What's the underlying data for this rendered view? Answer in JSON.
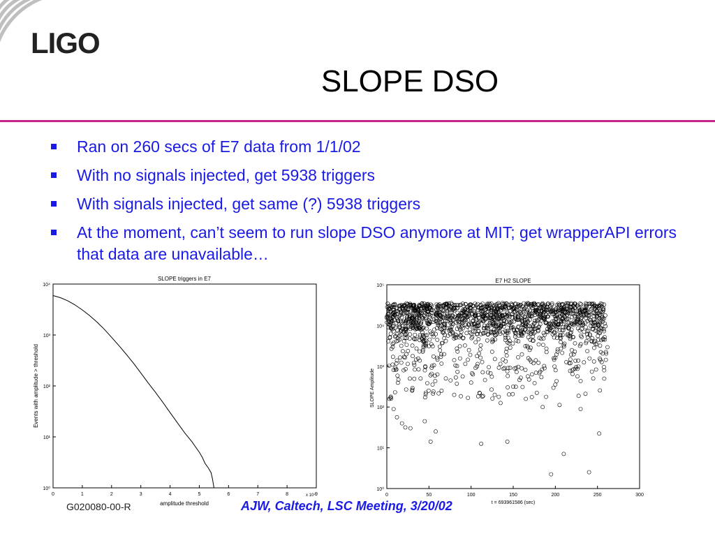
{
  "header": {
    "logo_text": "LIGO",
    "title": "SLOPE DSO"
  },
  "bullets": [
    "Ran on 260 secs of E7 data from 1/1/02",
    "With no signals injected, get 5938 triggers",
    "With signals injected, get same (?) 5938 triggers",
    "At the moment, can’t seem to run slope DSO anymore at MIT; get wrapperAPI errors that data are unavailable…"
  ],
  "footer": {
    "doc_id": "G020080-00-R",
    "meeting": "AJW, Caltech, LSC Meeting, 3/20/02"
  },
  "colors": {
    "accent_rule": "#c8238c",
    "bullet_text": "#1a1ae6"
  },
  "chart_data": [
    {
      "type": "line",
      "title": "SLOPE triggers in E7",
      "xlabel": "amplitude threshold",
      "ylabel": "Events with amplitude > threshold",
      "x_exponent_label": "x 10⁴",
      "xlim": [
        0,
        9
      ],
      "ylim_log10": [
        0,
        4
      ],
      "y_scale": "log",
      "xticks": [
        "0",
        "1",
        "2",
        "3",
        "4",
        "5",
        "6",
        "7",
        "8",
        "9"
      ],
      "yticks": [
        "10⁰",
        "10¹",
        "10²",
        "10³",
        "10⁴"
      ],
      "x": [
        0,
        0.25,
        0.5,
        0.75,
        1.0,
        1.25,
        1.5,
        1.75,
        2.0,
        2.25,
        2.5,
        2.75,
        3.0,
        3.25,
        3.5,
        3.75,
        4.0,
        4.25,
        4.5,
        4.75,
        5.0,
        5.1,
        5.2,
        5.3,
        5.4,
        5.45,
        5.5
      ],
      "y": [
        5938,
        5400,
        4700,
        3900,
        3100,
        2400,
        1800,
        1300,
        900,
        620,
        420,
        280,
        180,
        115,
        75,
        48,
        30,
        19,
        12,
        8,
        5,
        4,
        3,
        2.5,
        2,
        1.5,
        1
      ]
    },
    {
      "type": "scatter",
      "title": "E7 H2 SLOPE",
      "xlabel": "t = 693961586  (sec)",
      "ylabel": "SLOPE Amplitude",
      "xlim": [
        0,
        300
      ],
      "ylim_log10": [
        0,
        5
      ],
      "y_scale": "log",
      "xticks": [
        "0",
        "50",
        "100",
        "150",
        "200",
        "250",
        "300"
      ],
      "yticks": [
        "10⁰",
        "10¹",
        "10²",
        "10³",
        "10⁴",
        "10⁵"
      ],
      "dense_band": {
        "x_range": [
          0,
          260
        ],
        "log10_y_range": [
          3.6,
          4.55
        ]
      },
      "points": [
        [
          3,
          2.2
        ],
        [
          8,
          1.95
        ],
        [
          12,
          1.75
        ],
        [
          18,
          1.6
        ],
        [
          22,
          1.5
        ],
        [
          28,
          1.48
        ],
        [
          30,
          2.4
        ],
        [
          40,
          2.7
        ],
        [
          45,
          1.65
        ],
        [
          52,
          1.15
        ],
        [
          58,
          1.4
        ],
        [
          65,
          2.4
        ],
        [
          70,
          2.7
        ],
        [
          80,
          2.3
        ],
        [
          100,
          2.6
        ],
        [
          110,
          2.35
        ],
        [
          112,
          1.1
        ],
        [
          128,
          2.3
        ],
        [
          135,
          2.1
        ],
        [
          143,
          1.15
        ],
        [
          150,
          2.5
        ],
        [
          165,
          2.2
        ],
        [
          178,
          2.35
        ],
        [
          185,
          2.0
        ],
        [
          195,
          0.35
        ],
        [
          200,
          2.55
        ],
        [
          205,
          2.05
        ],
        [
          210,
          0.85
        ],
        [
          230,
          1.95
        ],
        [
          240,
          0.4
        ],
        [
          252,
          1.35
        ],
        [
          258,
          2.9
        ],
        [
          20,
          2.9
        ],
        [
          60,
          2.8
        ],
        [
          90,
          2.75
        ],
        [
          120,
          2.85
        ],
        [
          160,
          2.95
        ],
        [
          220,
          2.9
        ],
        [
          245,
          2.7
        ]
      ]
    }
  ]
}
